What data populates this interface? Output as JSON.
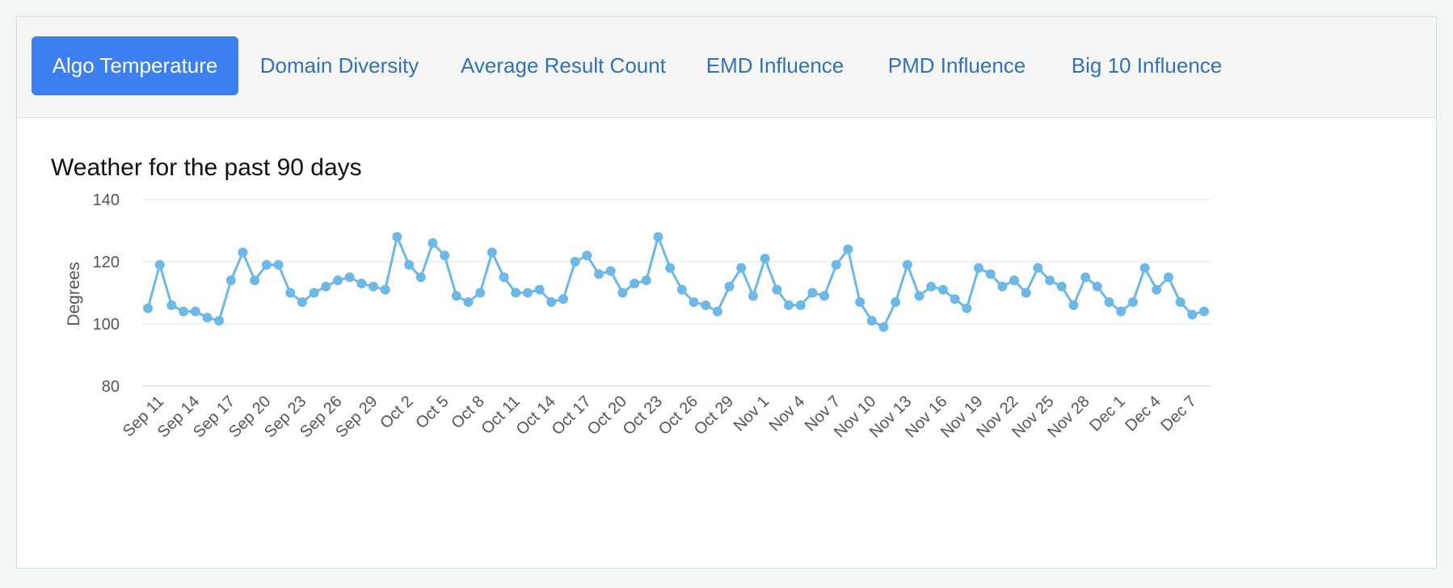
{
  "tabs": [
    {
      "label": "Algo Temperature",
      "active": true
    },
    {
      "label": "Domain Diversity",
      "active": false
    },
    {
      "label": "Average Result Count",
      "active": false
    },
    {
      "label": "EMD Influence",
      "active": false
    },
    {
      "label": "PMD Influence",
      "active": false
    },
    {
      "label": "Big 10 Influence",
      "active": false
    }
  ],
  "colors": {
    "accent": "#3b7ff0",
    "series": "#6cb8e6",
    "tab_text": "#2f72b8",
    "grid": "#dfe3e8"
  },
  "chart_data": {
    "type": "line",
    "title": "Weather for the past 90 days",
    "xlabel": "",
    "ylabel": "Degrees",
    "ylim": [
      80,
      140
    ],
    "yticks": [
      80,
      100,
      120,
      140
    ],
    "xtick_labels": [
      "Sep 11",
      "Sep 14",
      "Sep 17",
      "Sep 20",
      "Sep 23",
      "Sep 26",
      "Sep 29",
      "Oct 2",
      "Oct 5",
      "Oct 8",
      "Oct 11",
      "Oct 14",
      "Oct 17",
      "Oct 20",
      "Oct 23",
      "Oct 26",
      "Oct 29",
      "Nov 1",
      "Nov 4",
      "Nov 7",
      "Nov 10",
      "Nov 13",
      "Nov 16",
      "Nov 19",
      "Nov 22",
      "Nov 25",
      "Nov 28",
      "Dec 1",
      "Dec 4",
      "Dec 7"
    ],
    "series": [
      {
        "name": "Algo Temperature",
        "values": [
          105,
          119,
          106,
          104,
          104,
          102,
          101,
          114,
          123,
          114,
          119,
          119,
          110,
          107,
          110,
          112,
          114,
          115,
          113,
          112,
          111,
          128,
          119,
          115,
          126,
          122,
          109,
          107,
          110,
          123,
          115,
          110,
          110,
          111,
          107,
          108,
          120,
          122,
          116,
          117,
          110,
          113,
          114,
          128,
          118,
          111,
          107,
          106,
          104,
          112,
          118,
          109,
          121,
          111,
          106,
          106,
          110,
          109,
          119,
          124,
          107,
          101,
          99,
          107,
          119,
          109,
          112,
          111,
          108,
          105,
          118,
          116,
          112,
          114,
          110,
          118,
          114,
          112,
          106,
          115,
          112,
          107,
          104,
          107,
          118,
          111,
          115,
          107,
          103,
          104
        ]
      }
    ]
  }
}
